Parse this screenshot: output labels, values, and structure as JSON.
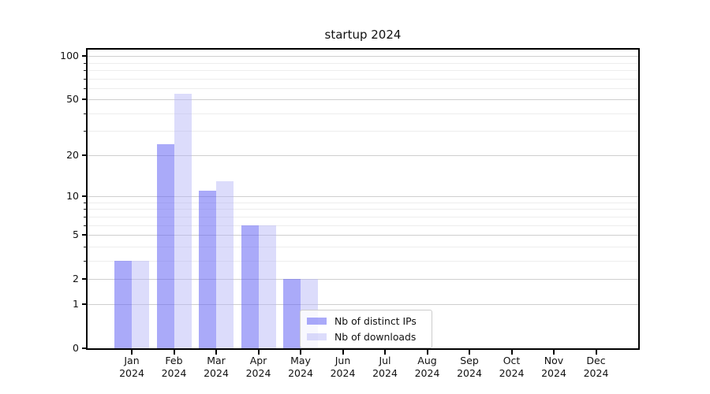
{
  "chart_data": {
    "type": "bar",
    "title": "startup 2024",
    "categories": [
      "Jan",
      "Feb",
      "Mar",
      "Apr",
      "May",
      "Jun",
      "Jul",
      "Aug",
      "Sep",
      "Oct",
      "Nov",
      "Dec"
    ],
    "year_label": "2024",
    "series": [
      {
        "name": "Nb of distinct IPs",
        "values": [
          3,
          24,
          11,
          6,
          2,
          0,
          0,
          0,
          0,
          0,
          0,
          0
        ],
        "color": "#aaa9f9",
        "fill_rgba": "rgba(100,100,244,0.55)"
      },
      {
        "name": "Nb of downloads",
        "values": [
          3,
          55,
          13,
          6,
          2,
          0,
          0,
          0,
          0,
          0,
          0,
          0
        ],
        "color": "#dcdcfb",
        "fill_rgba": "rgba(178,178,247,0.45)"
      }
    ],
    "y_axis": {
      "scale": "log10(1+y)",
      "tick_values": [
        0,
        1,
        2,
        5,
        10,
        20,
        50,
        100
      ],
      "tick_labels": [
        "0",
        "1",
        "2",
        "5",
        "10",
        "20",
        "50",
        "100"
      ],
      "minor_tick_values": [
        3,
        4,
        6,
        7,
        8,
        9,
        30,
        40,
        60,
        70,
        80,
        90
      ],
      "top_value": 112
    },
    "grid": {
      "major_color": "#cfcfcf",
      "minor_color": "#ededed",
      "on": true
    },
    "legend": {
      "position": "lower-center-left",
      "border_color": "#cccccc"
    },
    "xlabel": "",
    "ylabel": ""
  }
}
